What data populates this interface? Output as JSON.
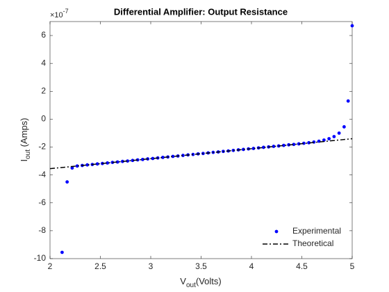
{
  "chart_data": {
    "type": "scatter",
    "title": "Differential Amplifier: Output Resistance",
    "xlabel": {
      "main": "V",
      "sub": "out",
      "rest": "(Volts)"
    },
    "ylabel": {
      "main": "I",
      "sub": "out",
      "rest": " (Amps)"
    },
    "y_multiplier": {
      "base": "×10",
      "exponent": "-7"
    },
    "xlim": [
      2,
      5
    ],
    "xticks": [
      2,
      2.5,
      3,
      3.5,
      4,
      4.5,
      5
    ],
    "ylim": [
      -10,
      7
    ],
    "yticks": [
      -10,
      -8,
      -6,
      -4,
      -2,
      0,
      2,
      4,
      6
    ],
    "legend": "lower right",
    "series": [
      {
        "name": "Experimental",
        "color": "#0000ff",
        "style": "markers",
        "x": [
          2.12,
          2.17,
          2.22,
          2.27,
          2.32,
          2.37,
          2.42,
          2.47,
          2.52,
          2.57,
          2.62,
          2.67,
          2.72,
          2.77,
          2.82,
          2.87,
          2.92,
          2.97,
          3.02,
          3.07,
          3.12,
          3.17,
          3.22,
          3.27,
          3.32,
          3.37,
          3.42,
          3.47,
          3.52,
          3.57,
          3.62,
          3.67,
          3.72,
          3.77,
          3.82,
          3.87,
          3.92,
          3.97,
          4.02,
          4.07,
          4.12,
          4.17,
          4.22,
          4.27,
          4.32,
          4.37,
          4.42,
          4.47,
          4.52,
          4.57,
          4.62,
          4.67,
          4.72,
          4.77,
          4.82,
          4.87,
          4.92,
          4.96,
          5.0
        ],
        "values": [
          -9.55,
          -4.5,
          -3.5,
          -3.36,
          -3.32,
          -3.28,
          -3.25,
          -3.21,
          -3.18,
          -3.14,
          -3.1,
          -3.07,
          -3.03,
          -3.0,
          -2.96,
          -2.92,
          -2.89,
          -2.85,
          -2.82,
          -2.78,
          -2.74,
          -2.71,
          -2.67,
          -2.64,
          -2.6,
          -2.56,
          -2.53,
          -2.49,
          -2.46,
          -2.42,
          -2.38,
          -2.35,
          -2.31,
          -2.28,
          -2.24,
          -2.2,
          -2.17,
          -2.13,
          -2.1,
          -2.06,
          -2.02,
          -1.99,
          -1.95,
          -1.92,
          -1.88,
          -1.84,
          -1.81,
          -1.77,
          -1.73,
          -1.69,
          -1.64,
          -1.58,
          -1.5,
          -1.4,
          -1.25,
          -1.0,
          -0.55,
          1.3,
          6.7
        ]
      },
      {
        "name": "Theoretical",
        "color": "#000000",
        "style": "dashdot",
        "x": [
          2,
          5
        ],
        "values": [
          -3.55,
          -1.4
        ]
      }
    ]
  }
}
